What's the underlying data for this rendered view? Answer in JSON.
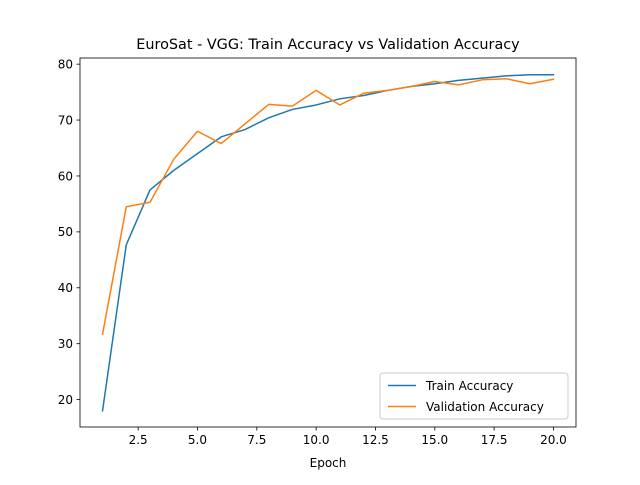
{
  "chart_data": {
    "type": "line",
    "title": "EuroSat - VGG: Train Accuracy vs Validation Accuracy",
    "xlabel": "Epoch",
    "ylabel": "",
    "xlim": [
      0.05,
      20.95
    ],
    "ylim": [
      15.1,
      81.1
    ],
    "xticks": [
      2.5,
      5.0,
      7.5,
      10.0,
      12.5,
      15.0,
      17.5,
      20.0
    ],
    "xtick_labels": [
      "2.5",
      "5.0",
      "7.5",
      "10.0",
      "12.5",
      "15.0",
      "17.5",
      "20.0"
    ],
    "yticks": [
      20,
      30,
      40,
      50,
      60,
      70,
      80
    ],
    "ytick_labels": [
      "20",
      "30",
      "40",
      "50",
      "60",
      "70",
      "80"
    ],
    "grid": false,
    "legend_position": "lower-right",
    "x": [
      1,
      2,
      3,
      4,
      5,
      6,
      7,
      8,
      9,
      10,
      11,
      12,
      13,
      14,
      15,
      16,
      17,
      18,
      19,
      20
    ],
    "series": [
      {
        "name": "Train Accuracy",
        "color": "#1f77b4",
        "values": [
          18.0,
          47.7,
          57.5,
          61.0,
          64.0,
          67.0,
          68.3,
          70.4,
          71.9,
          72.7,
          73.8,
          74.4,
          75.3,
          76.0,
          76.5,
          77.1,
          77.5,
          77.9,
          78.1,
          78.1
        ]
      },
      {
        "name": "Validation Accuracy",
        "color": "#ff7f0e",
        "values": [
          31.7,
          54.5,
          55.3,
          63.0,
          68.0,
          65.8,
          69.3,
          72.8,
          72.5,
          75.3,
          72.7,
          74.8,
          75.3,
          76.0,
          76.9,
          76.3,
          77.2,
          77.4,
          76.5,
          77.3
        ]
      }
    ]
  }
}
